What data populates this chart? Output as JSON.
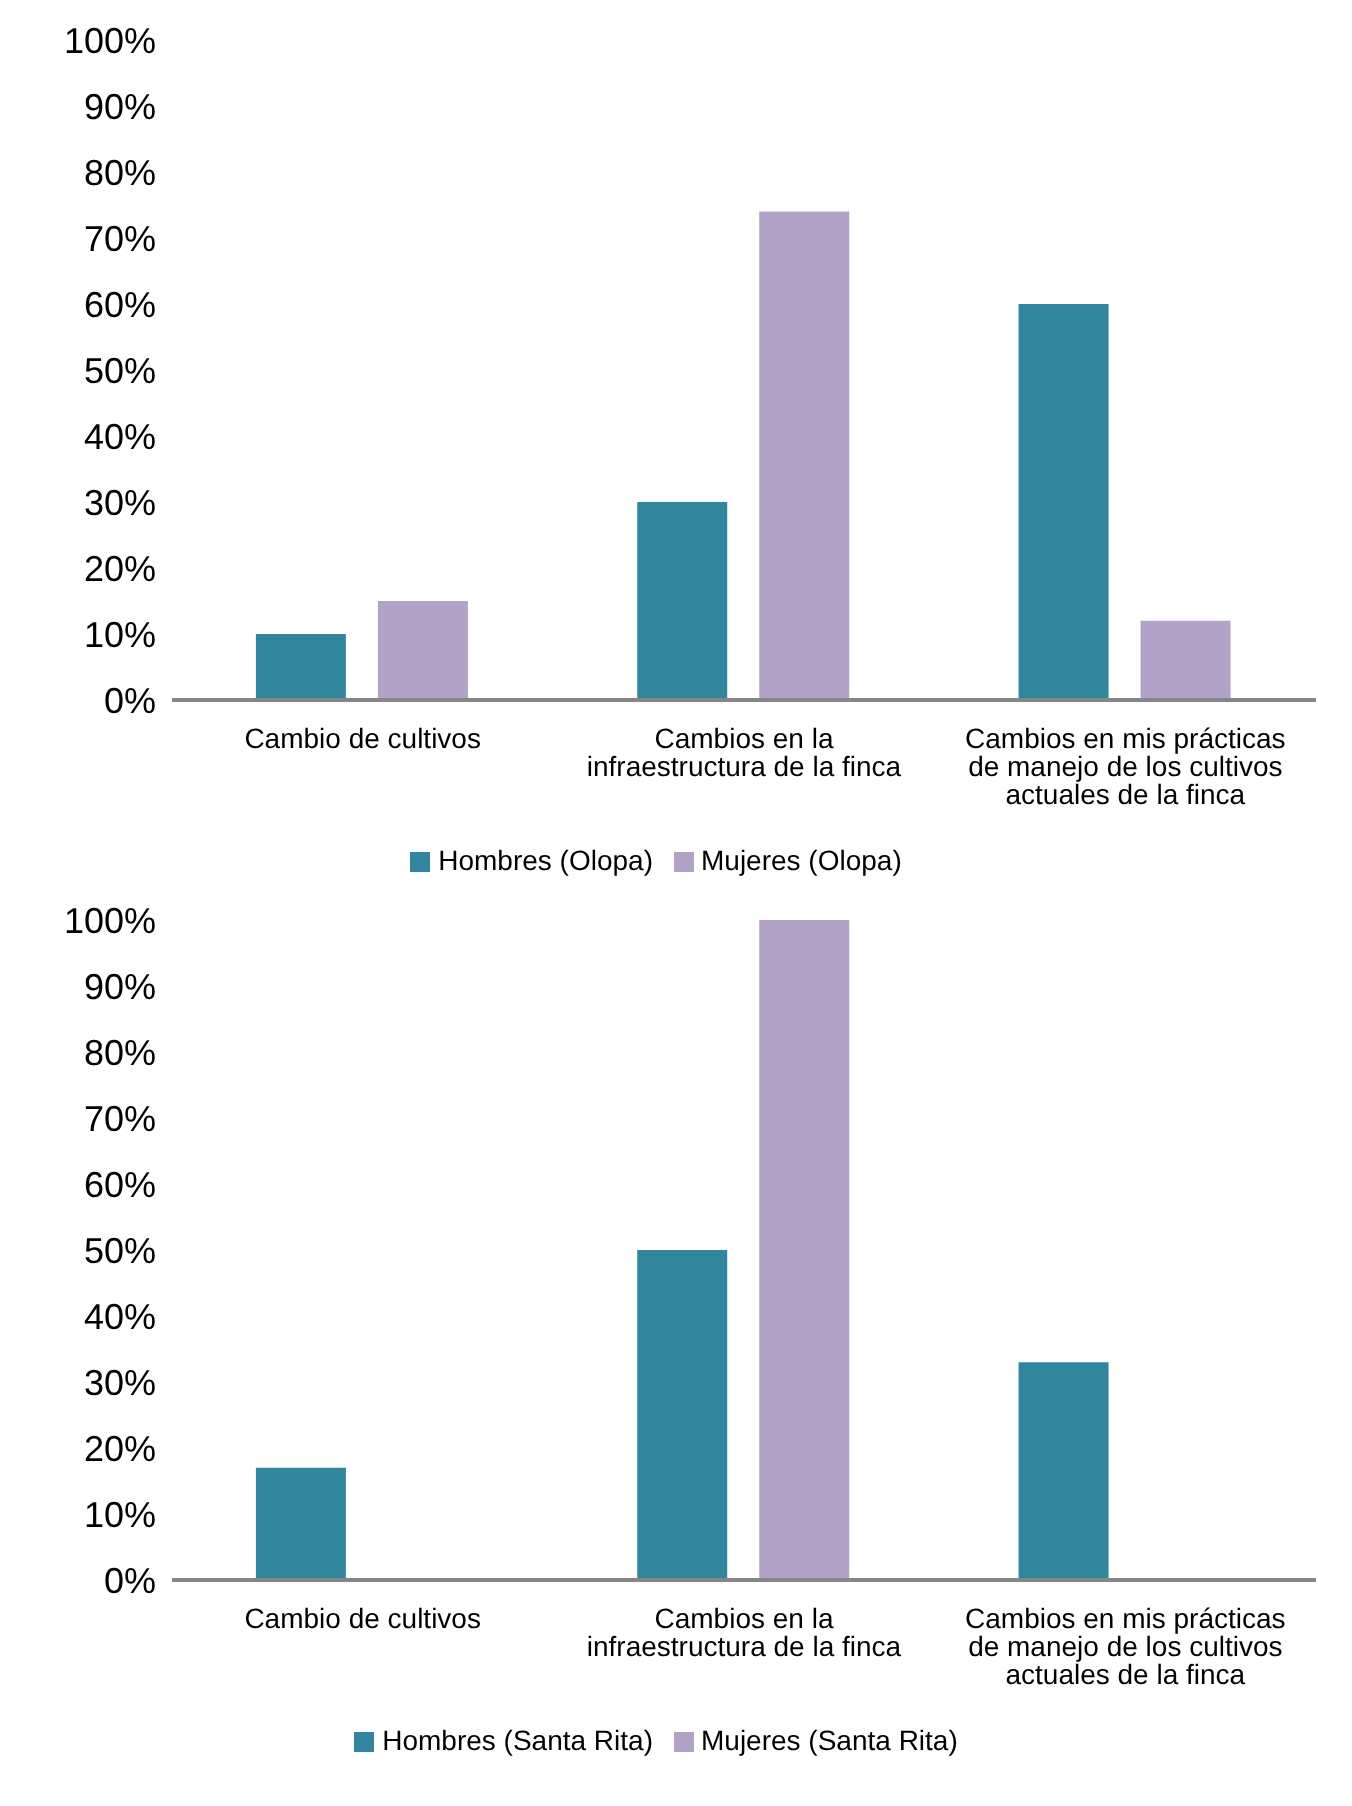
{
  "chart_data": [
    {
      "type": "bar",
      "categories": [
        "Cambio de cultivos",
        "Cambios en la infraestructura de la finca",
        "Cambios en mis prácticas de manejo de los cultivos actuales de la finca"
      ],
      "series": [
        {
          "name": "Hombres (Olopa)",
          "color": "#31859c",
          "values": [
            10,
            30,
            60
          ]
        },
        {
          "name": "Mujeres (Olopa)",
          "color": "#b3a2c7",
          "values": [
            15,
            74,
            12
          ]
        }
      ],
      "ylim": [
        0,
        100
      ],
      "yticks": [
        {
          "value": 0,
          "label": "0%"
        },
        {
          "value": 10,
          "label": "10%"
        },
        {
          "value": 20,
          "label": "20%"
        },
        {
          "value": 30,
          "label": "30%"
        },
        {
          "value": 40,
          "label": "40%"
        },
        {
          "value": 50,
          "label": "50%"
        },
        {
          "value": 60,
          "label": "60%"
        },
        {
          "value": 70,
          "label": "70%"
        },
        {
          "value": 80,
          "label": "80%"
        },
        {
          "value": 90,
          "label": "90%"
        },
        {
          "value": 100,
          "label": "100%"
        }
      ],
      "legend": "bottom"
    },
    {
      "type": "bar",
      "categories": [
        "Cambio de cultivos",
        "Cambios en la infraestructura de la finca",
        "Cambios en mis prácticas de manejo de los cultivos actuales de la finca"
      ],
      "series": [
        {
          "name": "Hombres (Santa Rita)",
          "color": "#31859c",
          "values": [
            17,
            50,
            33
          ]
        },
        {
          "name": "Mujeres (Santa Rita)",
          "color": "#b3a2c7",
          "values": [
            0,
            100,
            0
          ]
        }
      ],
      "ylim": [
        0,
        100
      ],
      "yticks": [
        {
          "value": 0,
          "label": "0%"
        },
        {
          "value": 10,
          "label": "10%"
        },
        {
          "value": 20,
          "label": "20%"
        },
        {
          "value": 30,
          "label": "30%"
        },
        {
          "value": 40,
          "label": "40%"
        },
        {
          "value": 50,
          "label": "50%"
        },
        {
          "value": 60,
          "label": "60%"
        },
        {
          "value": 70,
          "label": "70%"
        },
        {
          "value": 80,
          "label": "80%"
        },
        {
          "value": 90,
          "label": "90%"
        },
        {
          "value": 100,
          "label": "100%"
        }
      ],
      "legend": "bottom"
    }
  ]
}
